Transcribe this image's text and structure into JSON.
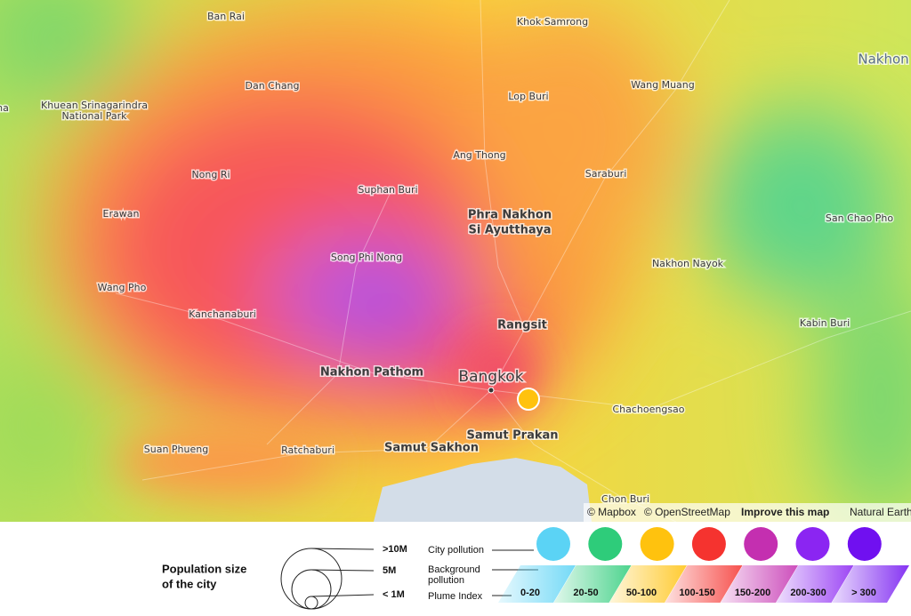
{
  "map": {
    "labels": [
      {
        "lines": [
          "Ban Rai"
        ]
      },
      {
        "lines": [
          "Khok Samrong"
        ]
      },
      {
        "lines": [
          "Nakhon"
        ]
      },
      {
        "lines": [
          "na"
        ]
      },
      {
        "lines": [
          "Dan Chang"
        ]
      },
      {
        "lines": [
          "Lop Buri"
        ]
      },
      {
        "lines": [
          "Wang Muang"
        ]
      },
      {
        "lines": [
          "Khuean Srinagarindra",
          "National Park"
        ]
      },
      {
        "lines": [
          "Ang Thong"
        ]
      },
      {
        "lines": [
          "Saraburi"
        ]
      },
      {
        "lines": [
          "Nong Ri"
        ]
      },
      {
        "lines": [
          "Suphan Buri"
        ]
      },
      {
        "lines": [
          "Phra Nakhon",
          "Si Ayutthaya"
        ]
      },
      {
        "lines": [
          "Erawan"
        ]
      },
      {
        "lines": [
          "San Chao Pho"
        ]
      },
      {
        "lines": [
          "Song Phi Nong"
        ]
      },
      {
        "lines": [
          "Nakhon Nayok"
        ]
      },
      {
        "lines": [
          "Wang Pho"
        ]
      },
      {
        "lines": [
          "Kanchanaburi"
        ]
      },
      {
        "lines": [
          "Rangsit"
        ]
      },
      {
        "lines": [
          "Kabin Buri"
        ]
      },
      {
        "lines": [
          "Nakhon Pathom"
        ]
      },
      {
        "lines": [
          "Bangkok"
        ]
      },
      {
        "lines": [
          "Chachoengsao"
        ]
      },
      {
        "lines": [
          "Samut Prakan"
        ]
      },
      {
        "lines": [
          "Suan Phueng"
        ]
      },
      {
        "lines": [
          "Ratchaburi"
        ]
      },
      {
        "lines": [
          "Samut Sakhon"
        ]
      },
      {
        "lines": [
          "Chon Buri"
        ]
      }
    ],
    "attribution": [
      "© Mapbox",
      "© OpenStreetMap",
      "Improve this map",
      "Natural Earth"
    ]
  },
  "legend": {
    "population_title": [
      "Population size",
      "of the city"
    ],
    "population_sizes": [
      ">10M",
      "5M",
      "< 1M"
    ],
    "city_pollution": "City pollution",
    "background_pollution": [
      "Background",
      "pollution"
    ],
    "plume_index": "Plume Index",
    "bins": [
      {
        "label": "0-20",
        "color": "#5bd3f5"
      },
      {
        "label": "20-50",
        "color": "#2ecc7a"
      },
      {
        "label": "50-100",
        "color": "#ffc20e"
      },
      {
        "label": "100-150",
        "color": "#f5332f"
      },
      {
        "label": "150-200",
        "color": "#c42fb0"
      },
      {
        "label": "200-300",
        "color": "#8b25f2"
      },
      {
        "label": "> 300",
        "color": "#7010f0"
      }
    ]
  }
}
